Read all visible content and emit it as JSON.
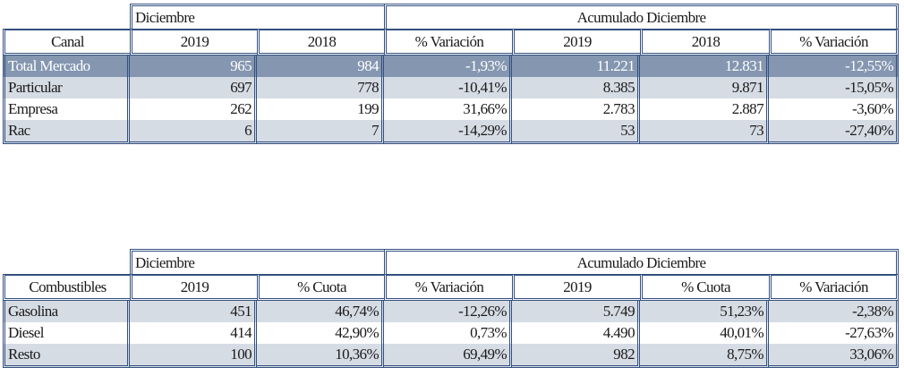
{
  "table1": {
    "group_left": "Diciembre",
    "group_right": "Acumulado Diciembre",
    "columns": [
      "Canal",
      "2019",
      "2018",
      "% Variación",
      "2019",
      "2018",
      "% Variación"
    ],
    "rows": [
      [
        "Total Mercado",
        "965",
        "984",
        "-1,93%",
        "11.221",
        "12.831",
        "-12,55%"
      ],
      [
        "Particular",
        "697",
        "778",
        "-10,41%",
        "8.385",
        "9.871",
        "-15,05%"
      ],
      [
        "Empresa",
        "262",
        "199",
        "31,66%",
        "2.783",
        "2.887",
        "-3,60%"
      ],
      [
        "Rac",
        "6",
        "7",
        "-14,29%",
        "53",
        "73",
        "-27,40%"
      ]
    ]
  },
  "table2": {
    "group_left": "Diciembre",
    "group_right": "Acumulado Diciembre",
    "columns": [
      "Combustibles",
      "2019",
      "% Cuota",
      "% Variación",
      "2019",
      "% Cuota",
      "% Variación"
    ],
    "rows": [
      [
        "Gasolina",
        "451",
        "46,74%",
        "-12,26%",
        "5.749",
        "51,23%",
        "-2,38%"
      ],
      [
        "Diesel",
        "414",
        "42,90%",
        "0,73%",
        "4.490",
        "40,01%",
        "-27,63%"
      ],
      [
        "Resto",
        "100",
        "10,36%",
        "69,49%",
        "982",
        "8,75%",
        "33,06%"
      ]
    ]
  },
  "colors": {
    "border": "#33507f",
    "highlight_row": "#8496b0",
    "striped_row": "#d6dce4"
  }
}
